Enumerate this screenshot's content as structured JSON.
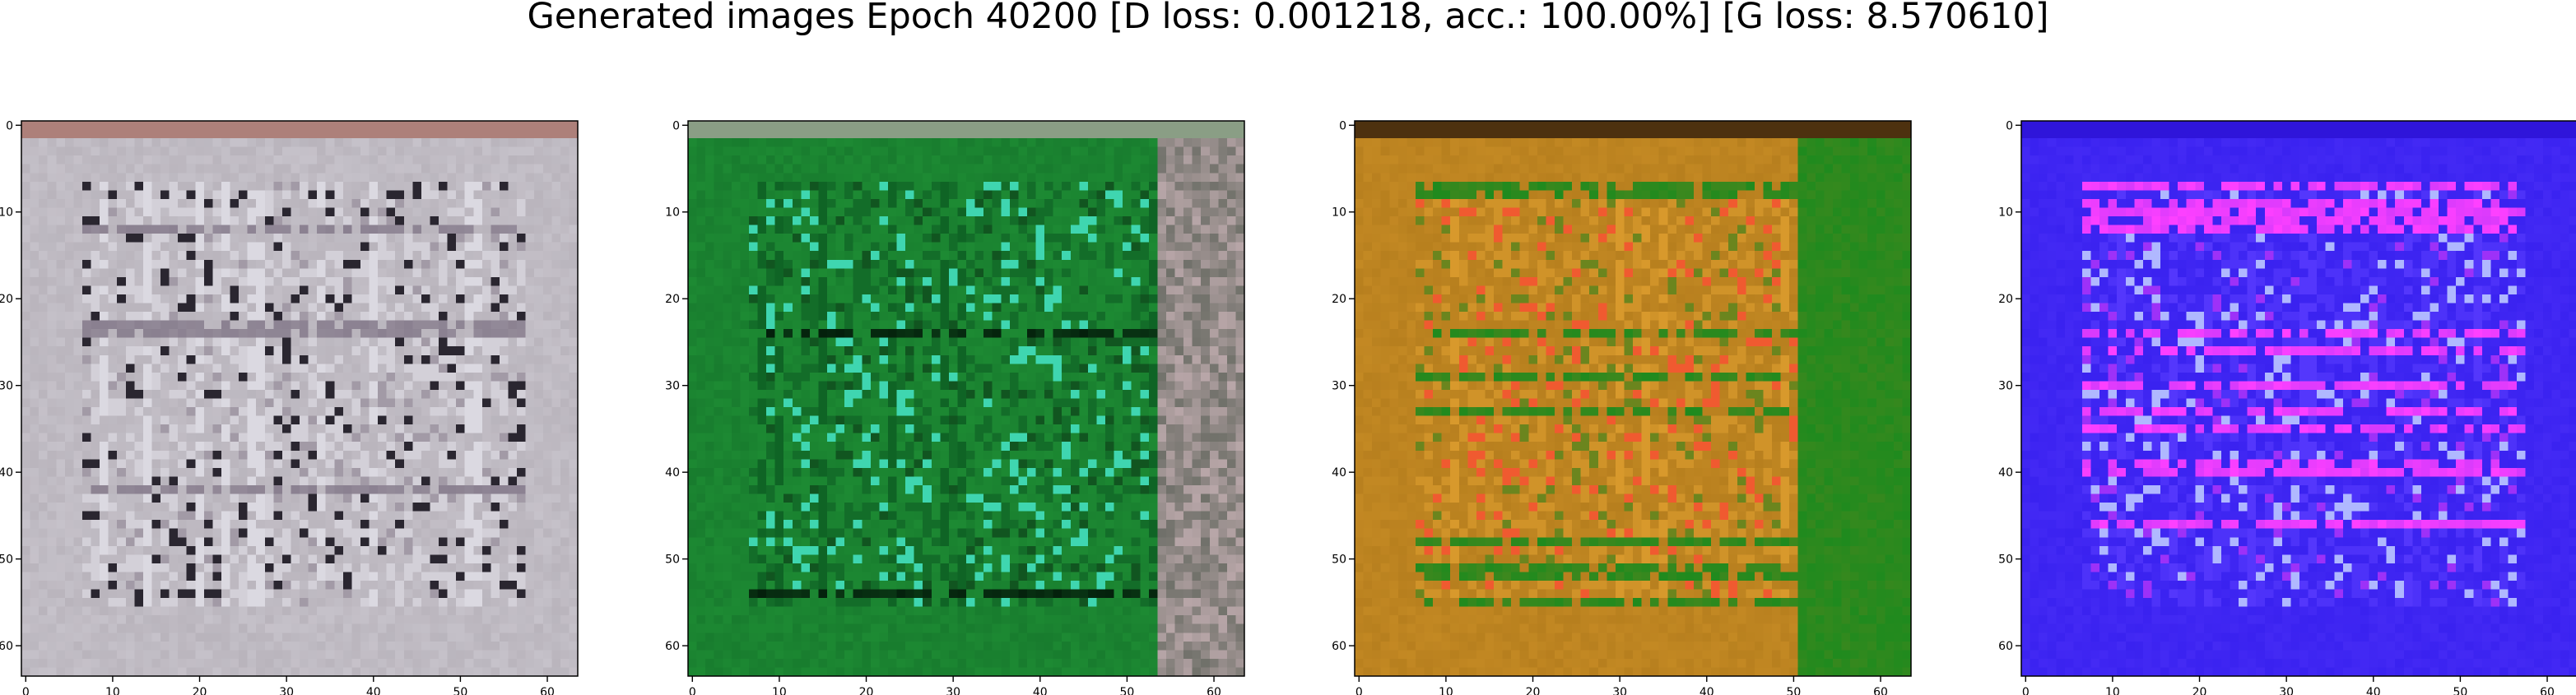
{
  "figure": {
    "title": "Generated images Epoch 40200 [D loss: 0.001218, acc.: 100.00%] [G loss: 8.570610]"
  },
  "chart_data": [
    {
      "type": "heatmap",
      "title": "",
      "xlabel": "",
      "ylabel": "",
      "xlim": [
        -0.5,
        63.5
      ],
      "ylim": [
        63.5,
        -0.5
      ],
      "xticks": [
        0,
        10,
        20,
        30,
        40,
        50,
        60
      ],
      "yticks": [
        0,
        10,
        20,
        30,
        40,
        50,
        60
      ],
      "grid": false,
      "dominant_colors": [
        "#b9b4bc",
        "#e4e2ea",
        "#2a2630",
        "#8a8090",
        "#a86a5e"
      ]
    },
    {
      "type": "heatmap",
      "title": "",
      "xlabel": "",
      "ylabel": "",
      "xlim": [
        -0.5,
        63.5
      ],
      "ylim": [
        63.5,
        -0.5
      ],
      "xticks": [
        0,
        10,
        20,
        30,
        40,
        50,
        60
      ],
      "yticks": [
        0,
        10,
        20,
        30,
        40,
        50,
        60
      ],
      "grid": false,
      "dominant_colors": [
        "#1d8a33",
        "#0c5a22",
        "#3fd6b0",
        "#04200c",
        "#b8a6a8"
      ]
    },
    {
      "type": "heatmap",
      "title": "",
      "xlabel": "",
      "ylabel": "",
      "xlim": [
        -0.5,
        63.5
      ],
      "ylim": [
        63.5,
        -0.5
      ],
      "xticks": [
        0,
        10,
        20,
        30,
        40,
        50,
        60
      ],
      "yticks": [
        0,
        10,
        20,
        30,
        40,
        50,
        60
      ],
      "grid": false,
      "dominant_colors": [
        "#b77f1e",
        "#e0a030",
        "#f05a30",
        "#1f8a1e",
        "#201008"
      ]
    },
    {
      "type": "heatmap",
      "title": "",
      "xlabel": "",
      "ylabel": "",
      "xlim": [
        -0.5,
        63.5
      ],
      "ylim": [
        63.5,
        -0.5
      ],
      "xticks": [
        0,
        10,
        20,
        30,
        40,
        50,
        60
      ],
      "yticks": [
        0,
        10,
        20,
        30,
        40,
        50,
        60
      ],
      "grid": false,
      "dominant_colors": [
        "#3a22f0",
        "#5a3cff",
        "#b0b8ff",
        "#ff40ff",
        "#2a10d0"
      ]
    }
  ]
}
